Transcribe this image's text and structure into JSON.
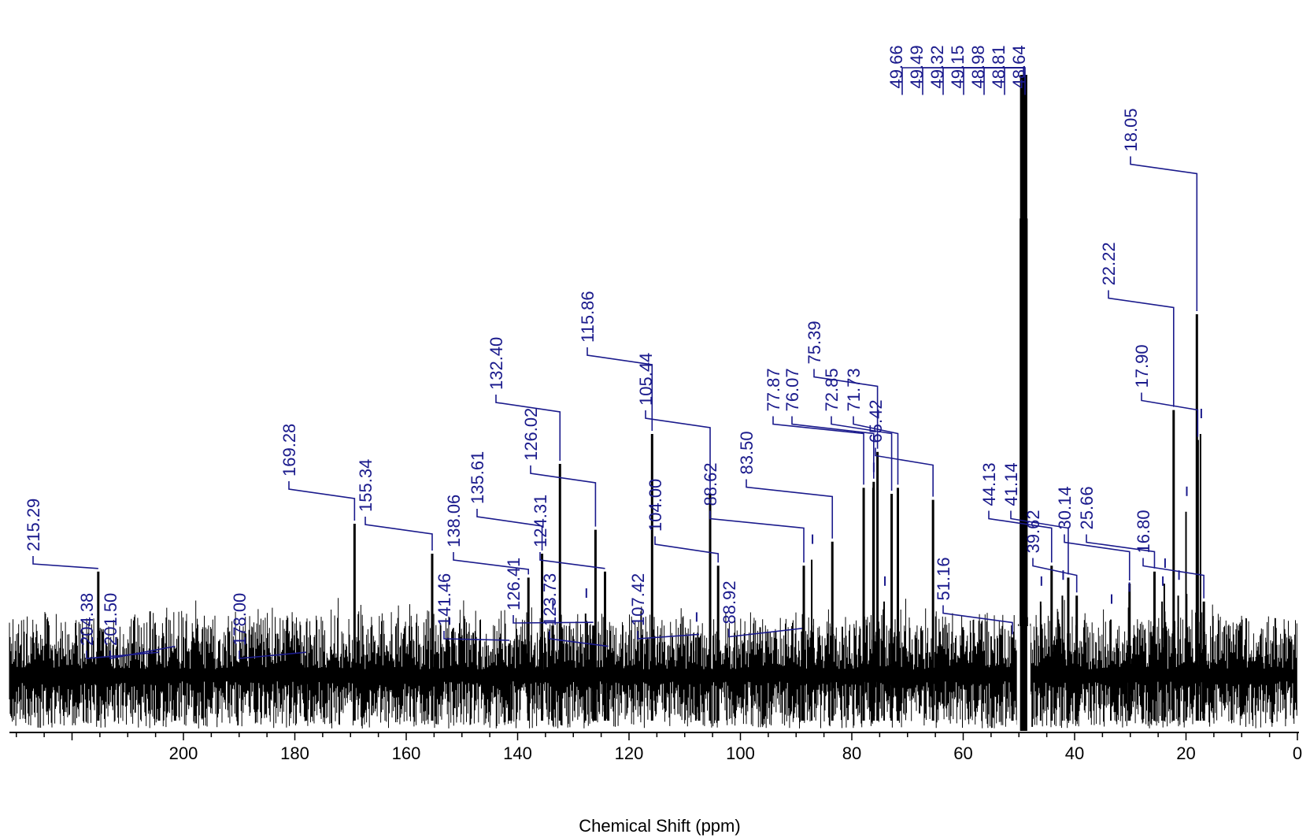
{
  "chart_data": {
    "type": "line",
    "xlabel": "Chemical Shift (ppm)",
    "ylabel": "",
    "xlim": [
      220,
      0
    ],
    "x_reversed": true,
    "ylim": [
      0,
      100
    ],
    "grid": false,
    "x_ticks": [
      "200",
      "180",
      "160",
      "140",
      "120",
      "100",
      "80",
      "60",
      "40",
      "20",
      "0"
    ],
    "peaks": [
      {
        "ppm": 215.29,
        "intensity": 17,
        "label": "215.29"
      },
      {
        "ppm": 204.38,
        "intensity": 3,
        "label": "204.38"
      },
      {
        "ppm": 201.5,
        "intensity": 4,
        "label": "201.50"
      },
      {
        "ppm": 178.0,
        "intensity": 3,
        "label": "178.00"
      },
      {
        "ppm": 169.28,
        "intensity": 25,
        "label": "169.28"
      },
      {
        "ppm": 155.34,
        "intensity": 20,
        "label": "155.34"
      },
      {
        "ppm": 141.46,
        "intensity": 5,
        "label": "141.46"
      },
      {
        "ppm": 138.06,
        "intensity": 16,
        "label": "138.06"
      },
      {
        "ppm": 135.61,
        "intensity": 20,
        "label": "135.61"
      },
      {
        "ppm": 132.4,
        "intensity": 35,
        "label": "132.40"
      },
      {
        "ppm": 126.41,
        "intensity": 8,
        "label": "126.41"
      },
      {
        "ppm": 126.02,
        "intensity": 24,
        "label": "126.02"
      },
      {
        "ppm": 124.31,
        "intensity": 17,
        "label": "124.31"
      },
      {
        "ppm": 123.73,
        "intensity": 4,
        "label": "123.73"
      },
      {
        "ppm": 115.86,
        "intensity": 40,
        "label": "115.86"
      },
      {
        "ppm": 107.42,
        "intensity": 6,
        "label": "107.42"
      },
      {
        "ppm": 105.44,
        "intensity": 30,
        "label": "105.44"
      },
      {
        "ppm": 104.0,
        "intensity": 18,
        "label": "104.00"
      },
      {
        "ppm": 88.92,
        "intensity": 7,
        "label": "88.92"
      },
      {
        "ppm": 88.62,
        "intensity": 18,
        "label": "88.62"
      },
      {
        "ppm": 83.5,
        "intensity": 22,
        "label": "83.50"
      },
      {
        "ppm": 77.87,
        "intensity": 31,
        "label": "77.87"
      },
      {
        "ppm": 76.07,
        "intensity": 32,
        "label": "76.07"
      },
      {
        "ppm": 75.39,
        "intensity": 37,
        "label": "75.39"
      },
      {
        "ppm": 72.85,
        "intensity": 30,
        "label": "72.85"
      },
      {
        "ppm": 71.73,
        "intensity": 31,
        "label": "71.73"
      },
      {
        "ppm": 65.42,
        "intensity": 29,
        "label": "65.42"
      },
      {
        "ppm": 51.16,
        "intensity": 6,
        "label": "51.16"
      },
      {
        "ppm": 49.66,
        "intensity": 76,
        "label": "49.66"
      },
      {
        "ppm": 49.49,
        "intensity": 100,
        "label": "49.49"
      },
      {
        "ppm": 49.32,
        "intensity": 100,
        "label": "49.32"
      },
      {
        "ppm": 49.15,
        "intensity": 100,
        "label": "49.15"
      },
      {
        "ppm": 48.98,
        "intensity": 100,
        "label": "48.98"
      },
      {
        "ppm": 48.81,
        "intensity": 100,
        "label": "48.81"
      },
      {
        "ppm": 48.64,
        "intensity": 76,
        "label": "48.64"
      },
      {
        "ppm": 44.13,
        "intensity": 18,
        "label": "44.13"
      },
      {
        "ppm": 41.14,
        "intensity": 16,
        "label": "41.14"
      },
      {
        "ppm": 39.62,
        "intensity": 13,
        "label": "39.62"
      },
      {
        "ppm": 30.14,
        "intensity": 15,
        "label": "30.14"
      },
      {
        "ppm": 25.66,
        "intensity": 17,
        "label": "25.66"
      },
      {
        "ppm": 22.22,
        "intensity": 44,
        "label": "22.22"
      },
      {
        "ppm": 18.05,
        "intensity": 60,
        "label": "18.05"
      },
      {
        "ppm": 17.9,
        "intensity": 39,
        "label": "17.90"
      },
      {
        "ppm": 16.8,
        "intensity": 12,
        "label": "16.80"
      }
    ],
    "minor_peaks": [
      {
        "ppm": 133.8,
        "intensity": 8
      },
      {
        "ppm": 127.8,
        "intensity": 10
      },
      {
        "ppm": 108.0,
        "intensity": 6
      },
      {
        "ppm": 87.2,
        "intensity": 19
      },
      {
        "ppm": 76.2,
        "intensity": 31
      },
      {
        "ppm": 74.2,
        "intensity": 12
      },
      {
        "ppm": 46.1,
        "intensity": 12
      },
      {
        "ppm": 42.2,
        "intensity": 13
      },
      {
        "ppm": 33.5,
        "intensity": 9
      },
      {
        "ppm": 30.3,
        "intensity": 11
      },
      {
        "ppm": 24.3,
        "intensity": 12
      },
      {
        "ppm": 23.9,
        "intensity": 15
      },
      {
        "ppm": 21.4,
        "intensity": 13
      },
      {
        "ppm": 20.0,
        "intensity": 27
      },
      {
        "ppm": 17.4,
        "intensity": 40
      }
    ]
  }
}
